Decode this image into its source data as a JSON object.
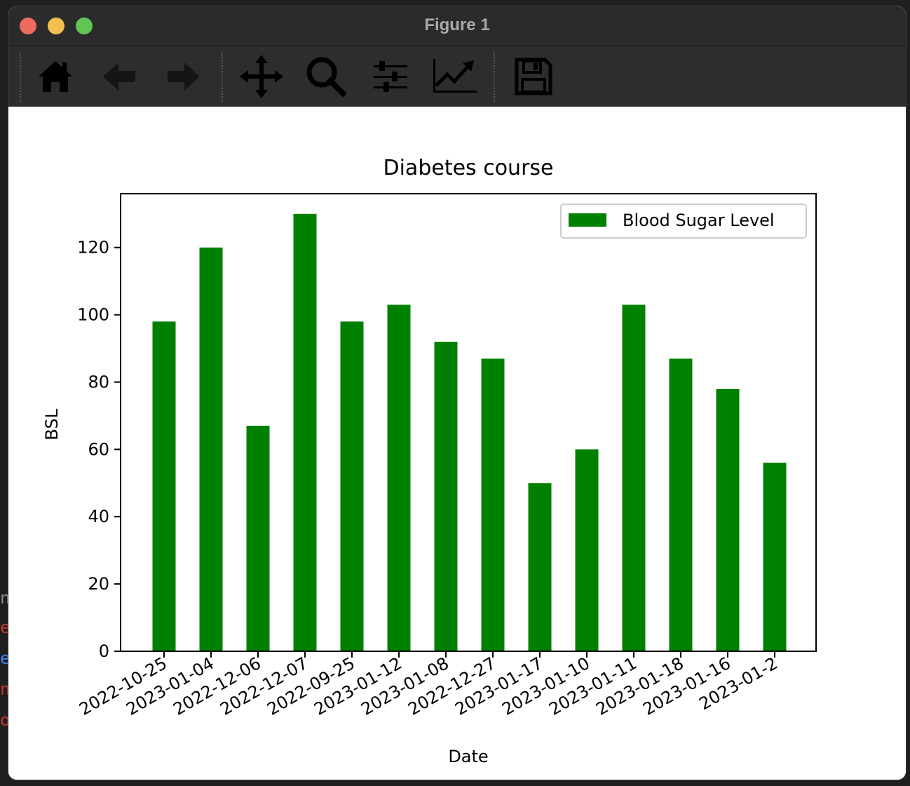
{
  "window": {
    "title": "Figure 1",
    "traffic_lights": {
      "close": "#ed6a5e",
      "minimize": "#f5bf4f",
      "zoom": "#61c554"
    }
  },
  "toolbar": {
    "buttons": [
      {
        "name": "home",
        "icon": "home-icon"
      },
      {
        "name": "back",
        "icon": "arrow-left-icon"
      },
      {
        "name": "forward",
        "icon": "arrow-right-icon"
      },
      {
        "name": "pan",
        "icon": "move-icon"
      },
      {
        "name": "zoom",
        "icon": "magnifier-icon"
      },
      {
        "name": "configure-subplots",
        "icon": "sliders-icon"
      },
      {
        "name": "edit-axes",
        "icon": "line-chart-icon"
      },
      {
        "name": "save",
        "icon": "floppy-disk-icon"
      }
    ]
  },
  "chart_data": {
    "type": "bar",
    "title": "Diabetes course",
    "xlabel": "Date",
    "ylabel": "BSL",
    "ylim": [
      0,
      136
    ],
    "yticks": [
      0,
      20,
      40,
      60,
      80,
      100,
      120
    ],
    "legend_position": "top-right",
    "grid": false,
    "categories": [
      "2022-10-25",
      "2023-01-04",
      "2022-12-06",
      "2022-12-07",
      "2022-09-25",
      "2023-01-12",
      "2023-01-08",
      "2022-12-27",
      "2023-01-17",
      "2023-01-10",
      "2023-01-11",
      "2023-01-18",
      "2023-01-16",
      "2023-01-2"
    ],
    "series": [
      {
        "name": "Blood Sugar Level",
        "color": "#008000",
        "values": [
          98,
          120,
          67,
          130,
          98,
          103,
          92,
          87,
          50,
          60,
          103,
          87,
          78,
          56
        ]
      }
    ]
  }
}
